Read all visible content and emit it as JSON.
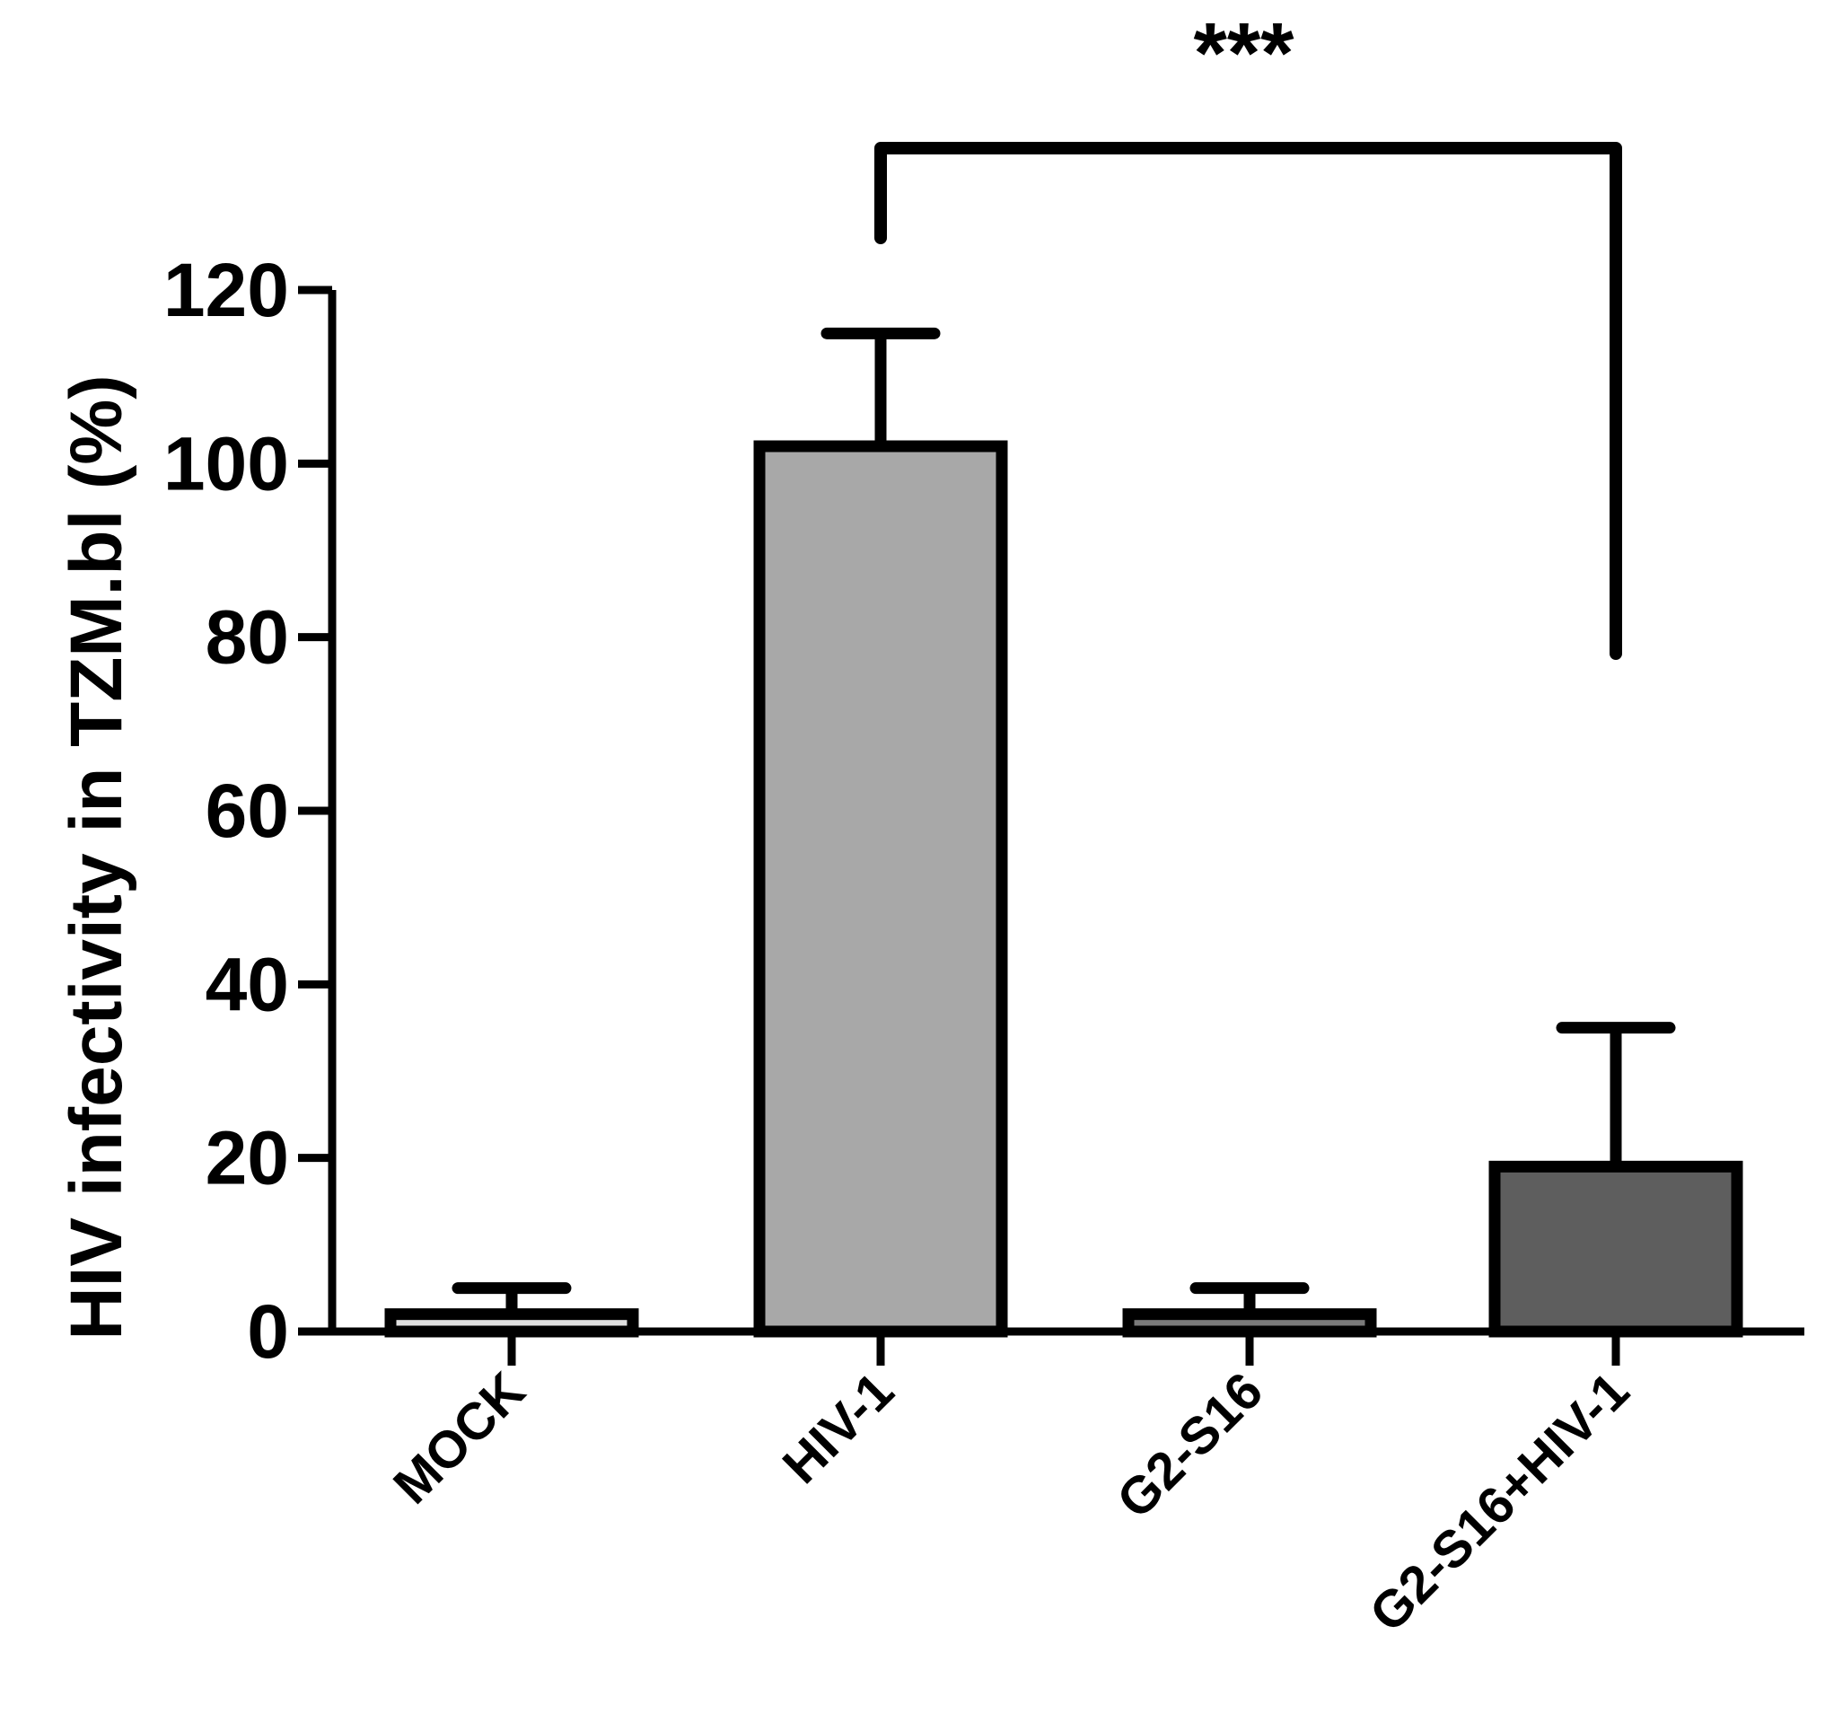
{
  "chart_data": {
    "type": "bar",
    "title": "",
    "xlabel": "",
    "ylabel": "HIV infectivity in TZM.bl (%)",
    "categories": [
      "MOCK",
      "HIV-1",
      "G2-S16",
      "G2-S16+HIV-1"
    ],
    "values": [
      2,
      102,
      2,
      19
    ],
    "error_upper": [
      5,
      115,
      5,
      35
    ],
    "bar_colors": [
      "#e0e0e0",
      "#a8a8a8",
      "#7a7a7a",
      "#5e5e5e"
    ],
    "ylim": [
      0,
      120
    ],
    "yticks": [
      0,
      20,
      40,
      60,
      80,
      100,
      120
    ],
    "grid": false,
    "significance": {
      "from_category": "HIV-1",
      "to_category": "G2-S16+HIV-1",
      "label": "***"
    }
  }
}
